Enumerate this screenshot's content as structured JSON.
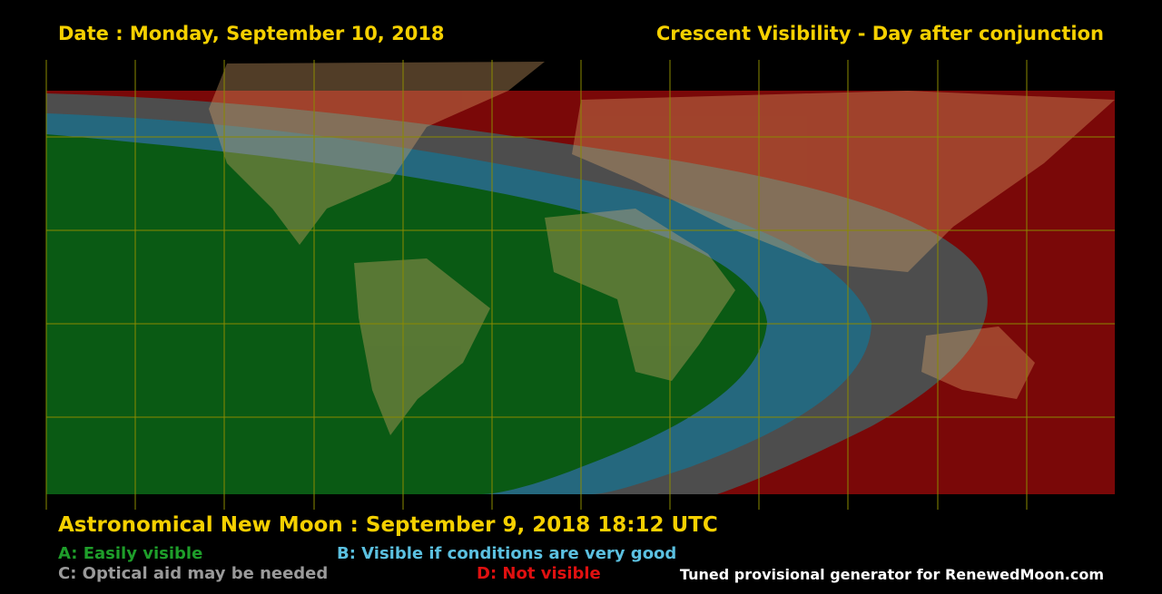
{
  "header": {
    "date": "Date : Monday, September 10, 2018",
    "title": "Crescent Visibility - Day after conjunction"
  },
  "footer": {
    "new_moon": "Astronomical New Moon : September 9, 2018 18:12 UTC",
    "legend": [
      "A: Easily visible",
      "B: Visible if conditions are very good",
      "C: Optical aid may be needed",
      "D: Not visible"
    ],
    "credit": "Tuned provisional generator for RenewedMoon.com"
  }
}
